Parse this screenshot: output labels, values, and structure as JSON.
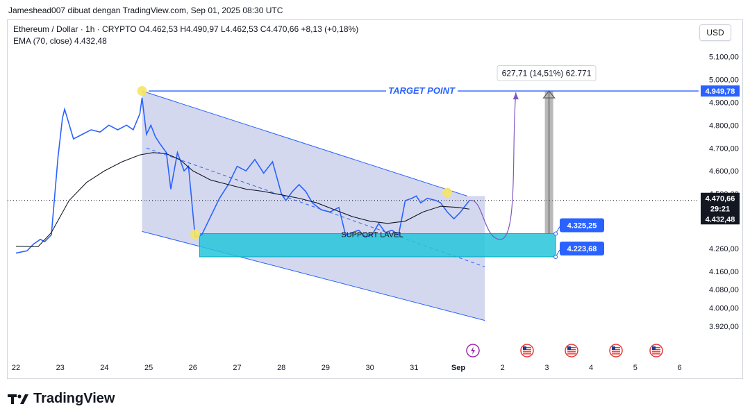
{
  "caption": "Jameshead007 dibuat dengan TradingView.com, Sep 01, 2025 08:30 UTC",
  "header": {
    "symbol_line": "Ethereum / Dollar · 1h · CRYPTO  O4.462,53  H4.490,97  L4.462,53  C4.470,66  +8,13 (+0,18%)",
    "ema_line": "EMA (70, close)  4.432,48"
  },
  "currency_button": "USD",
  "brand": "TradingView",
  "colors": {
    "channel_fill": "#c5cbe9",
    "channel_line": "#2962ff",
    "support_fill": "#26c6da",
    "target_line": "#2962ff",
    "price_up": "#2962ff",
    "ema_line": "#131722",
    "marker": "#f5e663",
    "path_line": "#7e57c2",
    "measure": "#808080"
  },
  "chart_data": {
    "type": "line",
    "symbol": "Ethereum / Dollar",
    "interval": "1h",
    "ohlc": {
      "open": 4462.53,
      "high": 4490.97,
      "low": 4462.53,
      "close": 4470.66,
      "change": 8.13,
      "change_pct": 0.18
    },
    "ylim": [
      3860,
      5200
    ],
    "x_tick_labels": [
      "22",
      "23",
      "24",
      "25",
      "26",
      "27",
      "28",
      "29",
      "30",
      "31",
      "Sep",
      "2",
      "3",
      "4",
      "5",
      "6"
    ],
    "y_tick_values": [
      3920,
      4000,
      4080,
      4160,
      4260,
      4500,
      4600,
      4700,
      4800,
      4900,
      5000,
      5100
    ],
    "y_tick_labels": [
      "3.920,00",
      "4.000,00",
      "4.080,00",
      "4.160,00",
      "4.260,00",
      "4.500,00",
      "4.600,00",
      "4.700,00",
      "4.800,00",
      "4.900,00",
      "5.000,00",
      "5.100,00"
    ],
    "x_day_index": [
      0,
      1,
      2,
      3,
      4,
      5,
      6,
      7,
      8,
      9,
      10,
      11,
      12,
      13,
      14,
      15
    ],
    "series": [
      {
        "name": "Ethereum / Dollar",
        "x": [
          0,
          0.25,
          0.4,
          0.55,
          0.65,
          0.8,
          0.95,
          1.05,
          1.1,
          1.3,
          1.5,
          1.7,
          1.9,
          2.1,
          2.3,
          2.5,
          2.65,
          2.8,
          2.85,
          2.95,
          3.05,
          3.15,
          3.25,
          3.4,
          3.5,
          3.65,
          3.8,
          3.9,
          4.05,
          4.2,
          4.4,
          4.6,
          4.8,
          5.0,
          5.2,
          5.4,
          5.6,
          5.8,
          6.0,
          6.1,
          6.25,
          6.4,
          6.55,
          6.7,
          6.9,
          7.1,
          7.3,
          7.45,
          7.6,
          7.75,
          7.9,
          8.05,
          8.2,
          8.35,
          8.5,
          8.65,
          8.8,
          8.95,
          9.05,
          9.15,
          9.3,
          9.5,
          9.6,
          9.75,
          9.9,
          10.05,
          10.25
        ],
        "values": [
          4240,
          4250,
          4280,
          4300,
          4290,
          4320,
          4660,
          4830,
          4870,
          4740,
          4760,
          4780,
          4770,
          4800,
          4780,
          4800,
          4780,
          4850,
          4920,
          4760,
          4800,
          4750,
          4720,
          4680,
          4520,
          4680,
          4600,
          4620,
          4310,
          4320,
          4400,
          4480,
          4540,
          4620,
          4600,
          4650,
          4590,
          4640,
          4500,
          4470,
          4510,
          4540,
          4510,
          4460,
          4430,
          4420,
          4440,
          4320,
          4330,
          4340,
          4310,
          4320,
          4370,
          4330,
          4340,
          4320,
          4470,
          4480,
          4490,
          4460,
          4480,
          4470,
          4460,
          4420,
          4390,
          4420,
          4470.66
        ]
      },
      {
        "name": "EMA (70, close)",
        "x": [
          0,
          0.5,
          0.8,
          1.2,
          1.6,
          2.0,
          2.4,
          2.8,
          3.1,
          3.4,
          3.7,
          4.0,
          4.4,
          4.8,
          5.2,
          5.6,
          6.0,
          6.4,
          6.8,
          7.2,
          7.6,
          8.0,
          8.4,
          8.8,
          9.2,
          9.6,
          10.0,
          10.25
        ],
        "values": [
          4270,
          4268,
          4330,
          4470,
          4550,
          4600,
          4640,
          4670,
          4680,
          4675,
          4650,
          4600,
          4560,
          4540,
          4520,
          4510,
          4495,
          4480,
          4460,
          4430,
          4400,
          4380,
          4370,
          4380,
          4420,
          4445,
          4440,
          4432.48
        ]
      }
    ],
    "annotations": {
      "target_label": "TARGET POINT",
      "support_label": "SUPPORT LAVEL",
      "measure_label": "627,71 (14,51%) 62.771",
      "price_tags": [
        "4.949,78",
        "4.470,66",
        "29:21",
        "4.432,48",
        "4.325,25",
        "4.223,68"
      ],
      "target_price": 4949.78,
      "support_top": 4325.25,
      "support_bottom": 4223.68
    }
  }
}
